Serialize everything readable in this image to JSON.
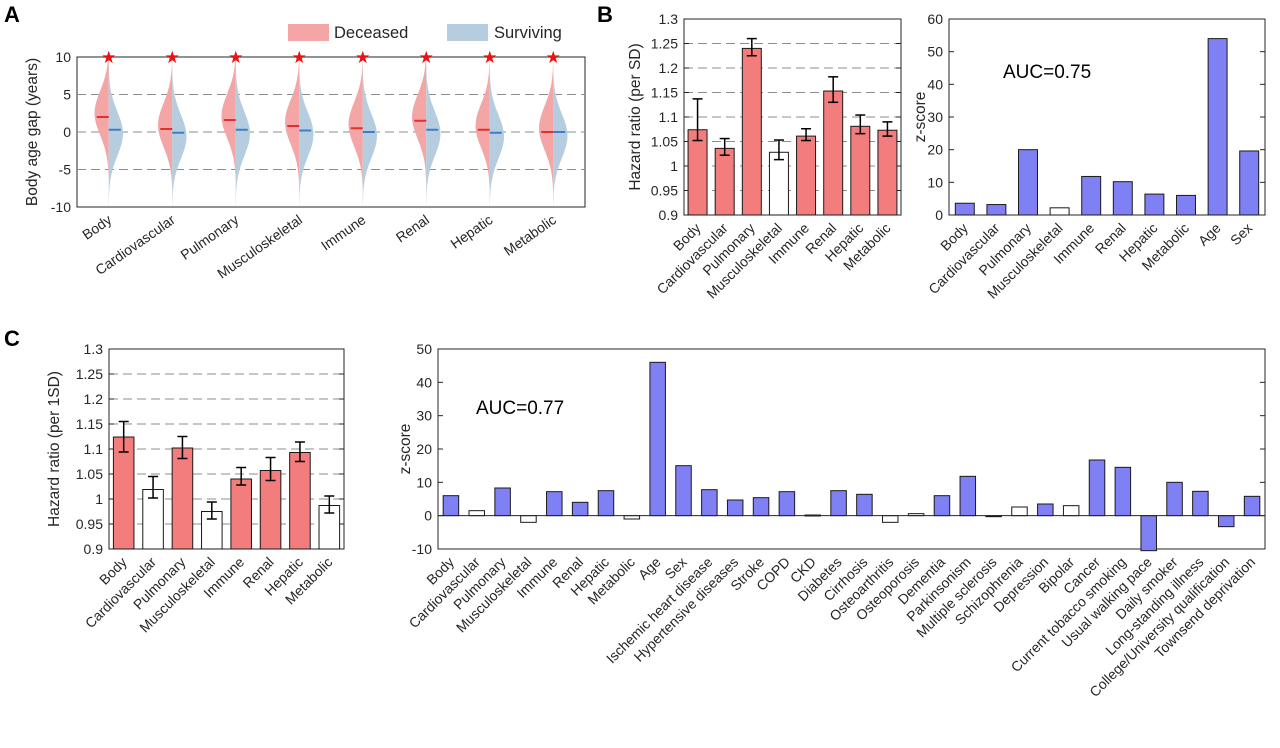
{
  "panels": {
    "a": "A",
    "b": "B",
    "c": "C"
  },
  "colors": {
    "deceased": "#f4a6a6",
    "surviving": "#b6cde0",
    "red_bar": "#f37c7c",
    "blue_bar": "#8080f5",
    "deceased_median": "#e03030",
    "surviving_median": "#3c7fc4",
    "star": "#ee1111"
  },
  "chart_data": [
    {
      "id": "A",
      "type": "violin",
      "legend": [
        "Deceased",
        "Surviving"
      ],
      "legend_position": "top-right",
      "ylabel": "Body age gap (years)",
      "ylim": [
        -10,
        10
      ],
      "yticks": [
        -10,
        -5,
        0,
        5,
        10
      ],
      "grid": "dashed horizontal",
      "categories": [
        "Body",
        "Cardiovascular",
        "Pulmonary",
        "Musculoskeletal",
        "Immune",
        "Renal",
        "Hepatic",
        "Metabolic"
      ],
      "series": [
        {
          "name": "Deceased",
          "medians": [
            2.0,
            0.4,
            1.6,
            0.8,
            0.5,
            1.5,
            0.3,
            0.0
          ]
        },
        {
          "name": "Surviving",
          "medians": [
            0.3,
            -0.1,
            0.3,
            0.2,
            0.0,
            0.3,
            -0.1,
            0.0
          ]
        }
      ],
      "significance_marker": "★"
    },
    {
      "id": "B-left",
      "type": "bar",
      "ylabel": "Hazard ratio (per SD)",
      "ylim": [
        0.9,
        1.3
      ],
      "yticks": [
        0.9,
        0.95,
        1,
        1.05,
        1.1,
        1.15,
        1.2,
        1.25,
        1.3
      ],
      "categories": [
        "Body",
        "Cardiovascular",
        "Pulmonary",
        "Musculoskeletal",
        "Immune",
        "Renal",
        "Hepatic",
        "Metabolic"
      ],
      "values": [
        1.074,
        1.036,
        1.24,
        1.028,
        1.061,
        1.153,
        1.081,
        1.073
      ],
      "errors": [
        [
          1.052,
          1.137
        ],
        [
          1.022,
          1.056
        ],
        [
          1.225,
          1.26
        ],
        [
          1.013,
          1.053
        ],
        [
          1.052,
          1.076
        ],
        [
          1.13,
          1.182
        ],
        [
          1.066,
          1.104
        ],
        [
          1.061,
          1.09
        ]
      ],
      "filled": [
        true,
        true,
        true,
        false,
        true,
        true,
        true,
        true
      ]
    },
    {
      "id": "B-right",
      "type": "bar",
      "ylabel": "z-score",
      "ylim": [
        0,
        60
      ],
      "yticks": [
        0,
        10,
        20,
        30,
        40,
        50,
        60
      ],
      "annotation": "AUC=0.75",
      "categories": [
        "Body",
        "Cardiovascular",
        "Pulmonary",
        "Musculoskeletal",
        "Immune",
        "Renal",
        "Hepatic",
        "Metabolic",
        "Age",
        "Sex"
      ],
      "values": [
        3.6,
        3.2,
        20.0,
        2.2,
        11.8,
        10.2,
        6.4,
        6.0,
        54.0,
        19.6
      ],
      "filled": [
        true,
        true,
        true,
        false,
        true,
        true,
        true,
        true,
        true,
        true
      ]
    },
    {
      "id": "C-left",
      "type": "bar",
      "ylabel": "Hazard ratio (per 1SD)",
      "ylim": [
        0.9,
        1.3
      ],
      "yticks": [
        0.9,
        0.95,
        1,
        1.05,
        1.1,
        1.15,
        1.2,
        1.25,
        1.3
      ],
      "categories": [
        "Body",
        "Cardiovascular",
        "Pulmonary",
        "Musculoskeletal",
        "Immune",
        "Renal",
        "Hepatic",
        "Metabolic"
      ],
      "values": [
        1.124,
        1.019,
        1.102,
        0.975,
        1.04,
        1.057,
        1.093,
        0.987
      ],
      "errors": [
        [
          1.094,
          1.155
        ],
        [
          1.002,
          1.045
        ],
        [
          1.081,
          1.125
        ],
        [
          0.96,
          0.994
        ],
        [
          1.028,
          1.063
        ],
        [
          1.037,
          1.083
        ],
        [
          1.075,
          1.114
        ],
        [
          0.972,
          1.006
        ]
      ],
      "filled": [
        true,
        false,
        true,
        false,
        true,
        true,
        true,
        false
      ]
    },
    {
      "id": "C-right",
      "type": "bar",
      "ylabel": "z-score",
      "ylim": [
        -10,
        50
      ],
      "yticks": [
        -10,
        0,
        10,
        20,
        30,
        40,
        50
      ],
      "annotation": "AUC=0.77",
      "categories": [
        "Body",
        "Cardiovascular",
        "Pulmonary",
        "Musculoskeletal",
        "Immune",
        "Renal",
        "Hepatic",
        "Metabolic",
        "Age",
        "Sex",
        "Ischemic heart disease",
        "Hypertensive diseases",
        "Stroke",
        "COPD",
        "CKD",
        "Diabetes",
        "Cirrhosis",
        "Osteoarthritis",
        "Osteoporosis",
        "Dementia",
        "Parkinsonism",
        "Multiple sclerosis",
        "Schizophrenia",
        "Depression",
        "Bipolar",
        "Cancer",
        "Current tobacco smoking",
        "Usual walking pace",
        "Daily smoker",
        "Long-standing illness",
        "College/University qualification",
        "Townsend deprivation"
      ],
      "values": [
        6.0,
        1.5,
        8.3,
        -2.0,
        7.2,
        4.0,
        7.5,
        -1.0,
        46.0,
        15.0,
        7.8,
        4.7,
        5.4,
        7.2,
        0.2,
        7.5,
        6.4,
        -2.0,
        0.6,
        6.0,
        11.8,
        -0.3,
        2.6,
        3.5,
        3.0,
        16.7,
        14.5,
        -10.5,
        10.0,
        7.3,
        -3.3,
        5.8
      ],
      "filled": [
        true,
        false,
        true,
        false,
        true,
        true,
        true,
        false,
        true,
        true,
        true,
        true,
        true,
        true,
        true,
        true,
        true,
        false,
        false,
        true,
        true,
        false,
        false,
        true,
        false,
        true,
        true,
        true,
        true,
        true,
        true,
        true
      ]
    }
  ]
}
